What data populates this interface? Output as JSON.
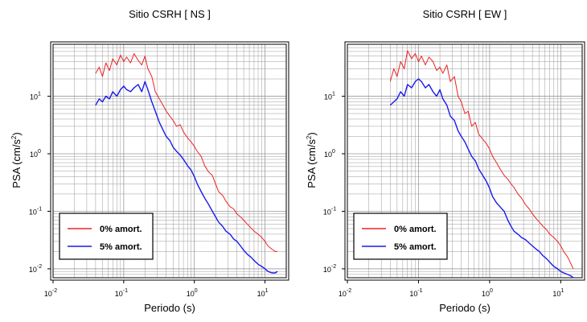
{
  "figure": {
    "colors": {
      "series_0": "#ee2222",
      "series_1": "#1a1aee",
      "frame": "#000000",
      "grid": "#9a9a9a"
    }
  },
  "chart_data": [
    {
      "type": "line",
      "title": "Sitio CSRH [ NS ]",
      "xlabel": "Periodo (s)",
      "ylabel_main": "PSA (cm/s",
      "ylabel_sup": "2",
      "ylabel_close": ")",
      "xscale": "log",
      "yscale": "log",
      "xlim": [
        0.01,
        20
      ],
      "ylim": [
        0.007,
        80
      ],
      "grid": true,
      "legend": "bottom-left",
      "x_ticks": [
        {
          "base": "10",
          "exp": "-2",
          "value": 0.01
        },
        {
          "base": "10",
          "exp": "-1",
          "value": 0.1
        },
        {
          "base": "10",
          "exp": "0",
          "value": 1
        },
        {
          "base": "10",
          "exp": "1",
          "value": 10
        }
      ],
      "y_ticks": [
        {
          "base": "10",
          "exp": "-2",
          "value": 0.01
        },
        {
          "base": "10",
          "exp": "-1",
          "value": 0.1
        },
        {
          "base": "10",
          "exp": "0",
          "value": 1
        },
        {
          "base": "10",
          "exp": "1",
          "value": 10
        }
      ],
      "series": [
        {
          "name": "0% amort.",
          "color": "#ee2222",
          "x": [
            0.04,
            0.045,
            0.05,
            0.056,
            0.063,
            0.07,
            0.08,
            0.09,
            0.1,
            0.11,
            0.125,
            0.14,
            0.16,
            0.18,
            0.2,
            0.22,
            0.25,
            0.28,
            0.32,
            0.36,
            0.4,
            0.45,
            0.5,
            0.56,
            0.63,
            0.7,
            0.8,
            0.9,
            1.0,
            1.1,
            1.25,
            1.4,
            1.6,
            1.8,
            2.0,
            2.2,
            2.5,
            2.8,
            3.2,
            3.6,
            4.0,
            4.5,
            5.0,
            5.6,
            6.3,
            7.0,
            8.0,
            9.0,
            10.0,
            11.0,
            12.5,
            14.0,
            15.0
          ],
          "y": [
            25,
            32,
            22,
            38,
            28,
            45,
            35,
            52,
            40,
            48,
            38,
            55,
            42,
            35,
            50,
            30,
            22,
            12,
            9,
            7,
            5.5,
            4.5,
            3.8,
            3.0,
            3.2,
            2.4,
            1.9,
            1.6,
            1.35,
            1.1,
            0.9,
            0.62,
            0.48,
            0.42,
            0.3,
            0.22,
            0.19,
            0.15,
            0.12,
            0.11,
            0.09,
            0.08,
            0.07,
            0.06,
            0.052,
            0.045,
            0.04,
            0.035,
            0.03,
            0.025,
            0.022,
            0.02,
            0.02
          ]
        },
        {
          "name": "5% amort.",
          "color": "#1a1aee",
          "x": [
            0.04,
            0.045,
            0.05,
            0.056,
            0.063,
            0.07,
            0.08,
            0.09,
            0.1,
            0.11,
            0.125,
            0.14,
            0.16,
            0.18,
            0.2,
            0.22,
            0.25,
            0.28,
            0.32,
            0.36,
            0.4,
            0.45,
            0.5,
            0.56,
            0.63,
            0.7,
            0.8,
            0.9,
            1.0,
            1.1,
            1.25,
            1.4,
            1.6,
            1.8,
            2.0,
            2.2,
            2.5,
            2.8,
            3.2,
            3.6,
            4.0,
            4.5,
            5.0,
            5.6,
            6.3,
            7.0,
            8.0,
            9.0,
            10.0,
            11.0,
            12.5,
            14.0,
            15.0
          ],
          "y": [
            7,
            9,
            8,
            10,
            9,
            12,
            10,
            13,
            15,
            13,
            12,
            14,
            16,
            12,
            18,
            13,
            8,
            5.5,
            3.5,
            2.6,
            2.0,
            1.7,
            1.3,
            1.1,
            0.95,
            0.8,
            0.62,
            0.52,
            0.4,
            0.3,
            0.22,
            0.17,
            0.13,
            0.1,
            0.08,
            0.065,
            0.055,
            0.045,
            0.04,
            0.033,
            0.03,
            0.025,
            0.021,
            0.018,
            0.016,
            0.014,
            0.012,
            0.011,
            0.01,
            0.009,
            0.0085,
            0.0085,
            0.009
          ]
        }
      ]
    },
    {
      "type": "line",
      "title": "Sitio CSRH [ EW ]",
      "xlabel": "Periodo (s)",
      "ylabel_main": "PSA (cm/s",
      "ylabel_sup": "2",
      "ylabel_close": ")",
      "xscale": "log",
      "yscale": "log",
      "xlim": [
        0.01,
        20
      ],
      "ylim": [
        0.007,
        80
      ],
      "grid": true,
      "legend": "bottom-left",
      "x_ticks": [
        {
          "base": "10",
          "exp": "-2",
          "value": 0.01
        },
        {
          "base": "10",
          "exp": "-1",
          "value": 0.1
        },
        {
          "base": "10",
          "exp": "0",
          "value": 1
        },
        {
          "base": "10",
          "exp": "1",
          "value": 10
        }
      ],
      "y_ticks": [
        {
          "base": "10",
          "exp": "-2",
          "value": 0.01
        },
        {
          "base": "10",
          "exp": "-1",
          "value": 0.1
        },
        {
          "base": "10",
          "exp": "0",
          "value": 1
        },
        {
          "base": "10",
          "exp": "1",
          "value": 10
        }
      ],
      "series": [
        {
          "name": "0% amort.",
          "color": "#ee2222",
          "x": [
            0.04,
            0.045,
            0.05,
            0.056,
            0.063,
            0.07,
            0.08,
            0.09,
            0.1,
            0.11,
            0.125,
            0.14,
            0.16,
            0.18,
            0.2,
            0.22,
            0.25,
            0.28,
            0.32,
            0.36,
            0.4,
            0.45,
            0.5,
            0.56,
            0.63,
            0.7,
            0.8,
            0.9,
            1.0,
            1.1,
            1.25,
            1.4,
            1.6,
            1.8,
            2.0,
            2.2,
            2.5,
            2.8,
            3.2,
            3.6,
            4.0,
            4.5,
            5.0,
            5.6,
            6.3,
            7.0,
            8.0,
            9.0,
            10.0,
            11.0,
            12.5,
            14.0,
            15.0
          ],
          "y": [
            18,
            30,
            22,
            40,
            30,
            62,
            45,
            55,
            40,
            50,
            35,
            48,
            40,
            28,
            32,
            25,
            35,
            18,
            22,
            10,
            8,
            5,
            5.5,
            3,
            3.5,
            2.2,
            1.8,
            1.5,
            1.2,
            0.9,
            0.7,
            0.55,
            0.42,
            0.36,
            0.3,
            0.26,
            0.2,
            0.17,
            0.13,
            0.11,
            0.09,
            0.075,
            0.065,
            0.055,
            0.048,
            0.04,
            0.035,
            0.03,
            0.025,
            0.02,
            0.016,
            0.012,
            0.01
          ]
        },
        {
          "name": "5% amort.",
          "color": "#1a1aee",
          "x": [
            0.04,
            0.045,
            0.05,
            0.056,
            0.063,
            0.07,
            0.08,
            0.09,
            0.1,
            0.11,
            0.125,
            0.14,
            0.16,
            0.18,
            0.2,
            0.22,
            0.25,
            0.28,
            0.32,
            0.36,
            0.4,
            0.45,
            0.5,
            0.56,
            0.63,
            0.7,
            0.8,
            0.9,
            1.0,
            1.1,
            1.25,
            1.4,
            1.6,
            1.8,
            2.0,
            2.2,
            2.5,
            2.8,
            3.2,
            3.6,
            4.0,
            4.5,
            5.0,
            5.6,
            6.3,
            7.0,
            8.0,
            9.0,
            10.0,
            11.0,
            12.5,
            14.0,
            15.0
          ],
          "y": [
            7,
            8,
            9,
            12,
            10,
            16,
            14,
            18,
            20,
            18,
            14,
            16,
            12,
            10,
            13,
            9,
            7,
            4.5,
            3.8,
            2.5,
            2.0,
            1.6,
            1.2,
            0.9,
            0.75,
            0.55,
            0.42,
            0.33,
            0.25,
            0.18,
            0.14,
            0.12,
            0.1,
            0.07,
            0.055,
            0.045,
            0.04,
            0.035,
            0.032,
            0.028,
            0.025,
            0.022,
            0.02,
            0.017,
            0.015,
            0.013,
            0.011,
            0.01,
            0.009,
            0.0085,
            0.008,
            0.0075,
            0.007
          ]
        }
      ]
    }
  ]
}
